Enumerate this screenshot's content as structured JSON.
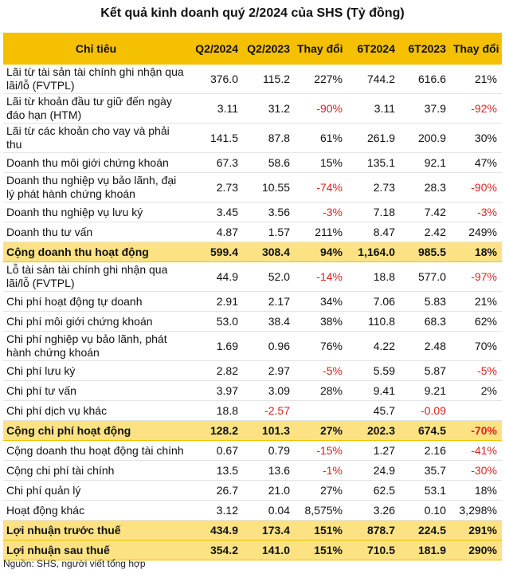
{
  "title": "Kết quả kinh doanh quý 2/2024 của SHS (Tỷ đồng)",
  "columns": [
    "Chỉ tiêu",
    "Q2/2024",
    "Q2/2023",
    "Thay đổi",
    "6T2024",
    "6T2023",
    "Thay đổi"
  ],
  "rows": [
    {
      "label": "Lãi từ tài sản tài chính ghi nhận qua lãi/lỗ (FVTPL)",
      "q2_2024": "376.0",
      "q2_2023": "115.2",
      "chg_q": "227%",
      "h1_2024": "744.2",
      "h1_2023": "616.6",
      "chg_h": "21%"
    },
    {
      "label": "Lãi từ khoản đầu tư giữ đến ngày đáo hạn (HTM)",
      "q2_2024": "3.11",
      "q2_2023": "31.2",
      "chg_q": "-90%",
      "h1_2024": "3.11",
      "h1_2023": "37.9",
      "chg_h": "-92%"
    },
    {
      "label": "Lãi từ các khoản cho vay và phải thu",
      "q2_2024": "141.5",
      "q2_2023": "87.8",
      "chg_q": "61%",
      "h1_2024": "261.9",
      "h1_2023": "200.9",
      "chg_h": "30%"
    },
    {
      "label": "Doanh thu môi giới chứng khoán",
      "q2_2024": "67.3",
      "q2_2023": "58.6",
      "chg_q": "15%",
      "h1_2024": "135.1",
      "h1_2023": "92.1",
      "chg_h": "47%"
    },
    {
      "label": "Doanh thu nghiệp vụ bảo lãnh, đại lý phát hành chứng khoán",
      "q2_2024": "2.73",
      "q2_2023": "10.55",
      "chg_q": "-74%",
      "h1_2024": "2.73",
      "h1_2023": "28.3",
      "chg_h": "-90%"
    },
    {
      "label": "Doanh thu nghiệp vụ lưu ký",
      "q2_2024": "3.45",
      "q2_2023": "3.56",
      "chg_q": "-3%",
      "h1_2024": "7.18",
      "h1_2023": "7.42",
      "chg_h": "-3%"
    },
    {
      "label": "Doanh thu tư vấn",
      "q2_2024": "4.87",
      "q2_2023": "1.57",
      "chg_q": "211%",
      "h1_2024": "8.47",
      "h1_2023": "2.42",
      "chg_h": "249%"
    },
    {
      "label": "Cộng doanh thu hoạt động",
      "q2_2024": "599.4",
      "q2_2023": "308.4",
      "chg_q": "94%",
      "h1_2024": "1,164.0",
      "h1_2023": "985.5",
      "chg_h": "18%"
    },
    {
      "label": "Lỗ tài sản tài chính ghi nhận qua lãi/lỗ (FVTPL)",
      "q2_2024": "44.9",
      "q2_2023": "52.0",
      "chg_q": "-14%",
      "h1_2024": "18.8",
      "h1_2023": "577.0",
      "chg_h": "-97%"
    },
    {
      "label": "Chi phí hoạt động tự doanh",
      "q2_2024": "2.91",
      "q2_2023": "2.17",
      "chg_q": "34%",
      "h1_2024": "7.06",
      "h1_2023": "5.83",
      "chg_h": "21%"
    },
    {
      "label": "Chi phí môi giới chứng khoán",
      "q2_2024": "53.0",
      "q2_2023": "38.4",
      "chg_q": "38%",
      "h1_2024": "110.8",
      "h1_2023": "68.3",
      "chg_h": "62%"
    },
    {
      "label": "Chi phí nghiệp vụ bảo lãnh, phát hành chứng khoán",
      "q2_2024": "1.69",
      "q2_2023": "0.96",
      "chg_q": "76%",
      "h1_2024": "4.22",
      "h1_2023": "2.48",
      "chg_h": "70%"
    },
    {
      "label": "Chi phí lưu ký",
      "q2_2024": "2.82",
      "q2_2023": "2.97",
      "chg_q": "-5%",
      "h1_2024": "5.59",
      "h1_2023": "5.87",
      "chg_h": "-5%"
    },
    {
      "label": "Chi phí tư vấn",
      "q2_2024": "3.97",
      "q2_2023": "3.09",
      "chg_q": "28%",
      "h1_2024": "9.41",
      "h1_2023": "9.21",
      "chg_h": "2%"
    },
    {
      "label": "Chi phí dịch vụ khác",
      "q2_2024": "18.8",
      "q2_2023": "-2.57",
      "chg_q": "",
      "h1_2024": "45.7",
      "h1_2023": "-0.09",
      "chg_h": ""
    },
    {
      "label": "Cộng chi phí hoạt động",
      "q2_2024": "128.2",
      "q2_2023": "101.3",
      "chg_q": "27%",
      "h1_2024": "202.3",
      "h1_2023": "674.5",
      "chg_h": "-70%"
    },
    {
      "label": "Cộng doanh thu hoạt động tài chính",
      "q2_2024": "0.67",
      "q2_2023": "0.79",
      "chg_q": "-15%",
      "h1_2024": "1.27",
      "h1_2023": "2.16",
      "chg_h": "-41%"
    },
    {
      "label": "Cộng chi phí tài chính",
      "q2_2024": "13.5",
      "q2_2023": "13.6",
      "chg_q": "-1%",
      "h1_2024": "24.9",
      "h1_2023": "35.7",
      "chg_h": "-30%"
    },
    {
      "label": "Chi phí quản lý",
      "q2_2024": "26.7",
      "q2_2023": "21.0",
      "chg_q": "27%",
      "h1_2024": "62.5",
      "h1_2023": "53.1",
      "chg_h": "18%"
    },
    {
      "label": "Hoạt động khác",
      "q2_2024": "3.12",
      "q2_2023": "0.04",
      "chg_q": "8,575%",
      "h1_2024": "3.26",
      "h1_2023": "0.10",
      "chg_h": "3,298%"
    },
    {
      "label": "Lợi nhuận trước thuế",
      "q2_2024": "434.9",
      "q2_2023": "173.4",
      "chg_q": "151%",
      "h1_2024": "878.7",
      "h1_2023": "224.5",
      "chg_h": "291%"
    },
    {
      "label": "Lợi nhuận sau thuế",
      "q2_2024": "354.2",
      "q2_2023": "141.0",
      "chg_q": "151%",
      "h1_2024": "710.5",
      "h1_2023": "181.9",
      "chg_h": "290%"
    }
  ],
  "source": "Nguồn: SHS, người viết tổng hợp",
  "colors": {
    "header_bg": "#f5c000",
    "total_bg": "#fce283",
    "negative": "#e01f1f"
  }
}
